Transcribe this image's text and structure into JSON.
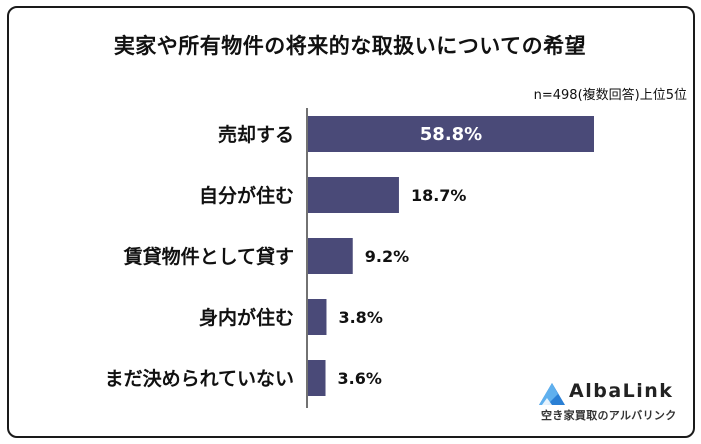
{
  "chart_data": {
    "type": "bar",
    "orientation": "horizontal",
    "title": "実家や所有物件の将来的な取扱いについての希望",
    "note": "n=498(複数回答)上位5位",
    "categories": [
      "売却する",
      "自分が住む",
      "賃貸物件として貸す",
      "身内が住む",
      "まだ決められていない"
    ],
    "values": [
      58.8,
      18.7,
      9.2,
      3.8,
      3.6
    ],
    "value_labels": [
      "58.8%",
      "18.7%",
      "9.2%",
      "3.8%",
      "3.6%"
    ],
    "unit": "%",
    "xlim": [
      0,
      60
    ],
    "bar_color": "#4a4a78",
    "grid": false
  },
  "logo": {
    "name": "AlbaLink",
    "subtitle": "空き家買取のアルバリンク",
    "mark_color": "#2a7fd4",
    "icon": "mountain-logo-icon"
  }
}
